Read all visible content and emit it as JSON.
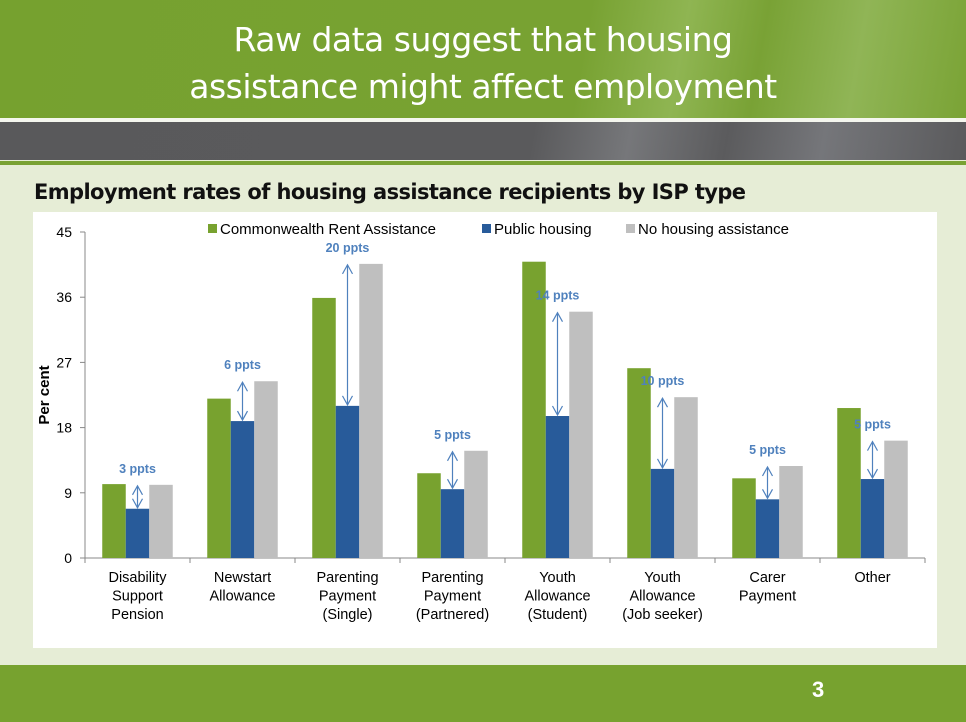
{
  "slide": {
    "title_lines": [
      "Raw data suggest that housing",
      "assistance might affect employment"
    ],
    "page_number": "3"
  },
  "colors": {
    "header_green": "#76a12f",
    "band_grey": "#5a5a5c",
    "cra": "#78a22f",
    "public": "#285b9a",
    "none": "#bfbfbf",
    "annotation": "#4f81bd"
  },
  "chart_data": {
    "type": "bar",
    "title": "Employment rates of housing assistance recipients by ISP type",
    "ylabel": "Per cent",
    "xlabel": "",
    "ylim": [
      0,
      45
    ],
    "yticks": [
      "0",
      "9",
      "18",
      "27",
      "36",
      "45"
    ],
    "legend_position": "top",
    "grid": false,
    "categories": [
      [
        "Disability",
        "Support",
        "Pension"
      ],
      [
        "Newstart",
        "Allowance"
      ],
      [
        "Parenting",
        "Payment",
        "(Single)"
      ],
      [
        "Parenting",
        "Payment",
        "(Partnered)"
      ],
      [
        "Youth",
        "Allowance",
        "(Student)"
      ],
      [
        "Youth",
        "Allowance",
        "(Job seeker)"
      ],
      [
        "Carer",
        "Payment"
      ],
      [
        "Other"
      ]
    ],
    "series": [
      {
        "name": "Commonwealth  Rent Assistance",
        "color": "#78a22f",
        "values": [
          10.2,
          22.0,
          35.9,
          11.7,
          40.9,
          26.2,
          11.0,
          20.7
        ]
      },
      {
        "name": "Public housing",
        "color": "#285b9a",
        "values": [
          6.8,
          18.9,
          21.0,
          9.5,
          19.6,
          12.3,
          8.1,
          10.9
        ]
      },
      {
        "name": "No housing assistance",
        "color": "#bfbfbf",
        "values": [
          10.1,
          24.4,
          40.6,
          14.8,
          34.0,
          22.2,
          12.7,
          16.2
        ]
      }
    ],
    "annotations": [
      "3 ppts",
      "6 ppts",
      "20 ppts",
      "5 ppts",
      "14 ppts",
      "10 ppts",
      "5 ppts",
      "5 ppts"
    ]
  }
}
